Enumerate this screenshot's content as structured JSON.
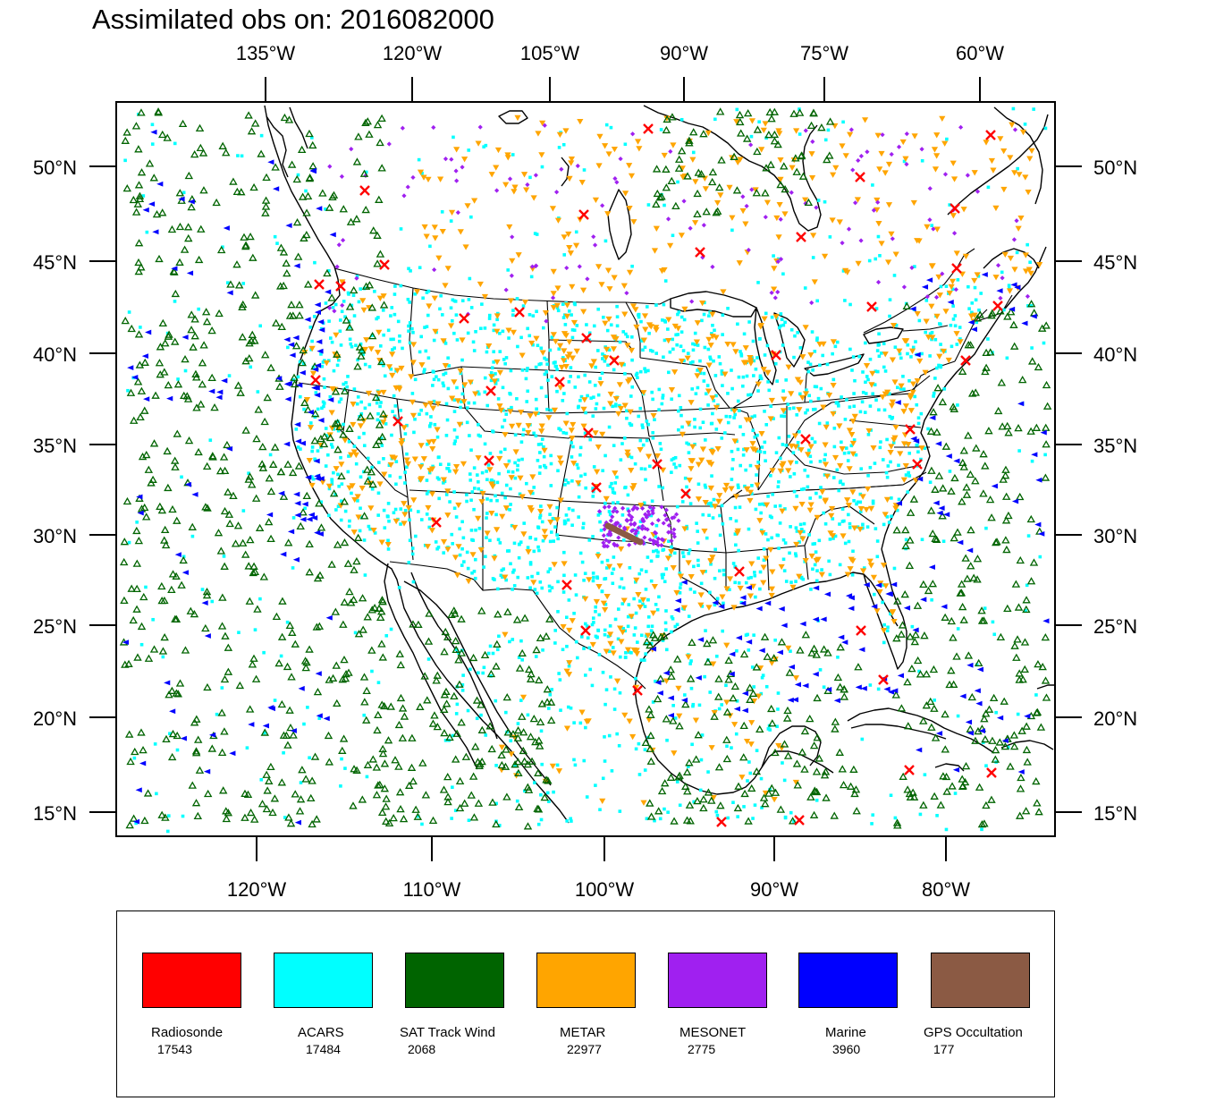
{
  "title": "Assimilated obs on: 2016082000",
  "top_lon_labels": [
    "135°W",
    "120°W",
    "105°W",
    "90°W",
    "75°W",
    "60°W"
  ],
  "bottom_lon_labels": [
    "120°W",
    "110°W",
    "100°W",
    "90°W",
    "80°W"
  ],
  "lat_labels": [
    "50°N",
    "45°N",
    "40°N",
    "35°N",
    "30°N",
    "25°N",
    "20°N",
    "15°N"
  ],
  "legend": [
    {
      "name": "Radiosonde",
      "count": "17543",
      "color": "#ff0000"
    },
    {
      "name": "ACARS",
      "count": "17484",
      "color": "#00ffff"
    },
    {
      "name": "SAT Track Wind",
      "count": "2068",
      "color": "#006400"
    },
    {
      "name": "METAR",
      "count": "22977",
      "color": "#ffa500"
    },
    {
      "name": "MESONET",
      "count": "2775",
      "color": "#a020f0"
    },
    {
      "name": "Marine",
      "count": "3960",
      "color": "#0000ff"
    },
    {
      "name": "GPS Occultation",
      "count": "177",
      "color": "#8b5a44"
    }
  ],
  "map_lines_color": "#000000"
}
